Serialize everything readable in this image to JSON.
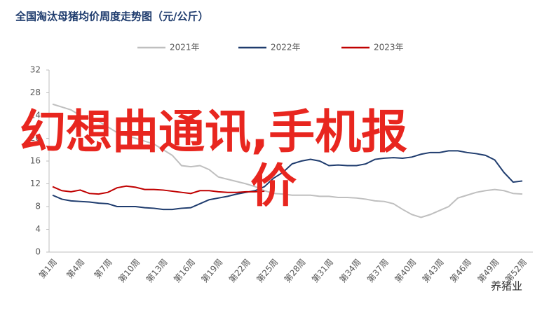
{
  "chart_data": {
    "type": "line",
    "title": "全国淘汰母猪均价周度走势图（元/公斤）",
    "overlay_text": [
      "幻想曲通讯,手机报",
      "价"
    ],
    "watermark": "养猪业",
    "categories": [
      "第1周",
      null,
      null,
      "第4周",
      null,
      null,
      "第7周",
      null,
      null,
      "第10周",
      null,
      null,
      "第13周",
      null,
      null,
      "第16周",
      null,
      null,
      "第19周",
      null,
      null,
      "第22周",
      null,
      null,
      "第25周",
      null,
      null,
      "第28周",
      null,
      null,
      "第31周",
      null,
      null,
      "第34周",
      null,
      null,
      "第37周",
      null,
      null,
      "第40周",
      null,
      null,
      "第43周",
      null,
      null,
      "第46周",
      null,
      null,
      "第49周",
      null,
      null,
      "第52周"
    ],
    "series": [
      {
        "name": "2021年",
        "color": "#bfbfbf",
        "values": [
          26,
          25.5,
          25,
          24,
          23.5,
          23,
          22,
          21,
          20.5,
          20,
          19.5,
          19,
          18,
          17,
          15.2,
          15,
          15.2,
          14.5,
          13.2,
          12.8,
          12.4,
          12,
          11.5,
          10.8,
          10.3,
          10.2,
          10,
          10,
          10,
          9.8,
          9.8,
          9.6,
          9.6,
          9.5,
          9.3,
          9,
          8.9,
          8.5,
          7.5,
          6.6,
          6.1,
          6.6,
          7.3,
          8,
          9.5,
          10,
          10.5,
          10.8,
          11,
          10.8,
          10.3,
          10.2
        ]
      },
      {
        "name": "2022年",
        "color": "#1f3c6e",
        "values": [
          10,
          9.3,
          9,
          8.9,
          8.8,
          8.6,
          8.5,
          8,
          8,
          8,
          7.8,
          7.7,
          7.5,
          7.5,
          7.7,
          7.8,
          8.5,
          9.2,
          9.5,
          9.8,
          10.2,
          10.5,
          10.8,
          11.5,
          13,
          14,
          15.5,
          16,
          16.3,
          16,
          15.2,
          15.3,
          15.2,
          15.2,
          15.5,
          16.3,
          16.5,
          16.6,
          16.5,
          16.7,
          17.2,
          17.5,
          17.5,
          17.8,
          17.8,
          17.5,
          17.3,
          17,
          16.2,
          14,
          12.3,
          12.5
        ]
      },
      {
        "name": "2023年",
        "color": "#c00000",
        "values": [
          11.5,
          10.8,
          10.6,
          10.9,
          10.3,
          10.2,
          10.5,
          11.3,
          11.6,
          11.4,
          11,
          11,
          10.9,
          10.7,
          10.5,
          10.3,
          10.8,
          10.8,
          10.6,
          10.5,
          10.5,
          10.6,
          10.6,
          10.7,
          null,
          null,
          null,
          null,
          null,
          null,
          null,
          null,
          null,
          null,
          null,
          null,
          null,
          null,
          null,
          null,
          null,
          null,
          null,
          null,
          null,
          null,
          null,
          null,
          null,
          null,
          null,
          null
        ]
      }
    ],
    "ylim": [
      0,
      32
    ],
    "yticks": [
      0,
      4,
      8,
      12,
      16,
      20,
      24,
      28,
      32
    ],
    "legend": "top"
  }
}
